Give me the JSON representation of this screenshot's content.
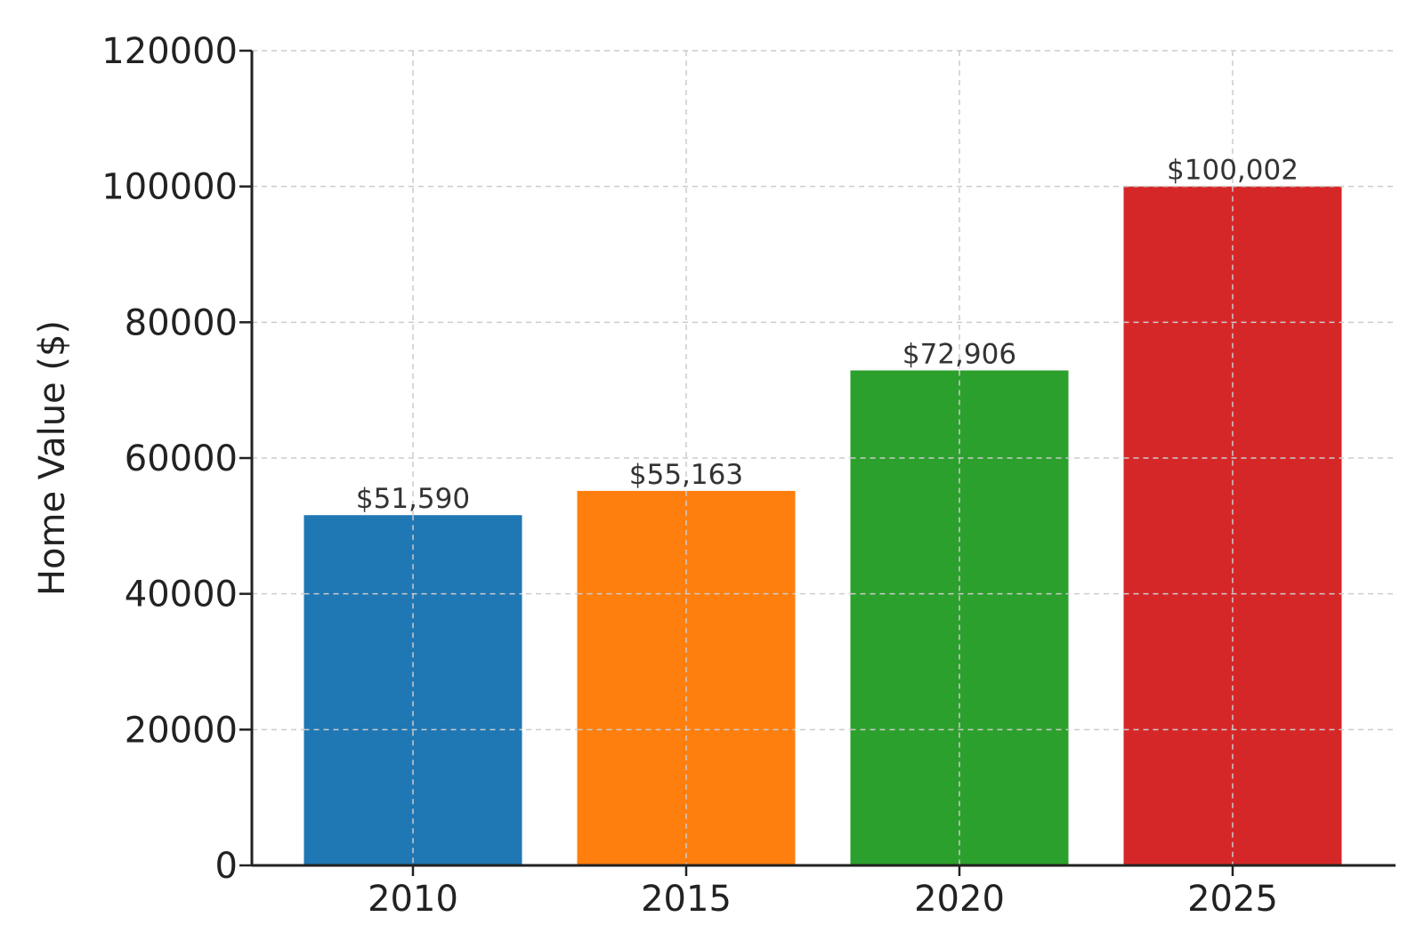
{
  "chart_data": {
    "type": "bar",
    "title": "",
    "xlabel": "",
    "ylabel": "Home Value ($)",
    "categories": [
      "2010",
      "2015",
      "2020",
      "2025"
    ],
    "values": [
      51590,
      55163,
      72906,
      100002
    ],
    "value_labels": [
      "$51,590",
      "$55,163",
      "$72,906",
      "$100,002"
    ],
    "colors": [
      "#1f77b4",
      "#ff7f0e",
      "#2ca02c",
      "#d62728"
    ],
    "ylim": [
      0,
      120000
    ],
    "yticks": [
      0,
      20000,
      40000,
      60000,
      80000,
      100000,
      120000
    ],
    "ytick_labels": [
      "0",
      "20000",
      "40000",
      "60000",
      "80000",
      "100000",
      "120000"
    ],
    "grid": true
  }
}
